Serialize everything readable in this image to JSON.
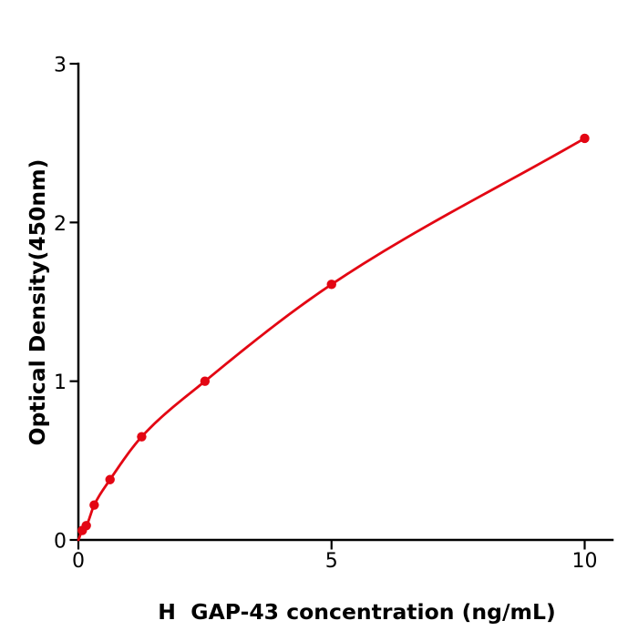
{
  "figure": {
    "background": "#ffffff"
  },
  "chart_data": {
    "type": "line",
    "title": "",
    "xlabel": "H  GAP-43 concentration (ng/mL)",
    "ylabel": "Optical Density(450nm)",
    "x": [
      0.078,
      0.156,
      0.3125,
      0.625,
      1.25,
      2.5,
      5,
      10
    ],
    "y": [
      0.06,
      0.09,
      0.22,
      0.38,
      0.65,
      1.0,
      1.61,
      2.53
    ],
    "curve_origin": {
      "x": 0,
      "y": 0
    },
    "xlim": [
      0,
      10.55
    ],
    "ylim": [
      0,
      3
    ],
    "xticks": {
      "values": [
        0,
        5,
        10
      ],
      "labels": [
        "0",
        "5",
        "10"
      ]
    },
    "yticks": {
      "values": [
        0,
        1,
        2,
        3
      ],
      "labels": [
        "0",
        "1",
        "2",
        "3"
      ]
    },
    "grid": false,
    "legend_position": "none",
    "line_color": "#e30613",
    "marker_color": "#e30613",
    "marker_shape": "circle",
    "axis_color": "#000000"
  }
}
